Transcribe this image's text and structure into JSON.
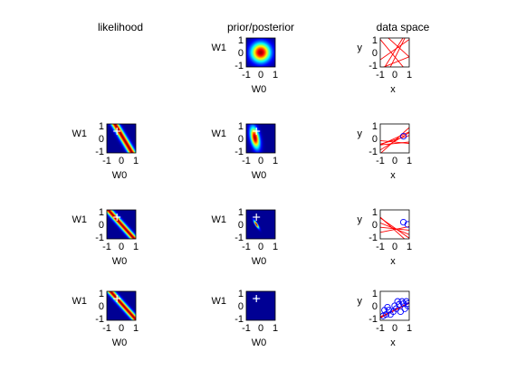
{
  "figure": {
    "background": "#ffffff",
    "column_titles": [
      "likelihood",
      "prior/posterior",
      "data space"
    ],
    "param_axis": {
      "xlabel": "W0",
      "ylabel": "W1",
      "xticks": [
        "-1",
        "0",
        "1"
      ],
      "yticks": [
        "1",
        "0",
        "-1"
      ]
    },
    "data_axis": {
      "xlabel": "x",
      "ylabel": "y",
      "xticks": [
        "-1",
        "0",
        "1"
      ],
      "yticks": [
        "1",
        "0",
        "-1"
      ]
    }
  },
  "chart_data": [
    {
      "type": "heatmap",
      "panel": "prior",
      "row": 0,
      "col": 1,
      "colormap": "jet",
      "xlim": [
        -1,
        1
      ],
      "ylim": [
        -1,
        1
      ],
      "xlabel": "W0",
      "ylabel": "W1",
      "gaussian": {
        "mean": [
          0,
          0
        ],
        "sd": [
          0.45,
          0.45
        ],
        "rho": 0
      }
    },
    {
      "type": "line",
      "panel": "samples",
      "row": 0,
      "col": 2,
      "xlim": [
        -1,
        1
      ],
      "ylim": [
        -1,
        1
      ],
      "xlabel": "x",
      "ylabel": "y",
      "line_color": "#ff0000",
      "lines": [
        {
          "w0": 0.1,
          "w1": 1.6
        },
        {
          "w0": -0.3,
          "w1": -1.2
        },
        {
          "w0": 0.6,
          "w1": -0.9
        },
        {
          "w0": -0.7,
          "w1": 0.4
        },
        {
          "w0": 0.2,
          "w1": 0.7
        },
        {
          "w0": -0.4,
          "w1": 2.0
        }
      ],
      "points": []
    },
    {
      "type": "heatmap",
      "panel": "likelihood",
      "row": 1,
      "col": 0,
      "colormap": "jet",
      "xlim": [
        -1,
        1
      ],
      "ylim": [
        -1,
        1
      ],
      "xlabel": "W0",
      "ylabel": "W1",
      "ridge": {
        "x": 0.6,
        "t": 0.15,
        "width": 0.18
      },
      "true_w": [
        -0.3,
        0.5
      ]
    },
    {
      "type": "heatmap",
      "panel": "posterior",
      "row": 1,
      "col": 1,
      "colormap": "jet",
      "xlim": [
        -1,
        1
      ],
      "ylim": [
        -1,
        1
      ],
      "xlabel": "W0",
      "ylabel": "W1",
      "gaussian": {
        "mean": [
          -0.4,
          0.05
        ],
        "sd": [
          0.22,
          0.5
        ],
        "rho": -0.4
      },
      "true_w": [
        -0.3,
        0.5
      ]
    },
    {
      "type": "line",
      "panel": "samples",
      "row": 1,
      "col": 2,
      "xlim": [
        -1,
        1
      ],
      "ylim": [
        -1,
        1
      ],
      "xlabel": "x",
      "ylabel": "y",
      "line_color": "#ff0000",
      "lines": [
        {
          "w0": -0.1,
          "w1": 0.3
        },
        {
          "w0": -0.2,
          "w1": 0.6
        },
        {
          "w0": -0.35,
          "w1": 0.1
        },
        {
          "w0": 0.0,
          "w1": 0.45
        },
        {
          "w0": -0.25,
          "w1": -0.1
        },
        {
          "w0": -0.15,
          "w1": 0.9
        }
      ],
      "points": [
        [
          0.6,
          0.15
        ]
      ]
    },
    {
      "type": "heatmap",
      "panel": "likelihood",
      "row": 2,
      "col": 0,
      "colormap": "jet",
      "xlim": [
        -1,
        1
      ],
      "ylim": [
        -1,
        1
      ],
      "xlabel": "W0",
      "ylabel": "W1",
      "ridge": {
        "x": 0.9,
        "t": 0.0,
        "width": 0.18
      },
      "true_w": [
        -0.3,
        0.5
      ]
    },
    {
      "type": "heatmap",
      "panel": "posterior",
      "row": 2,
      "col": 1,
      "colormap": "jet",
      "xlim": [
        -1,
        1
      ],
      "ylim": [
        -1,
        1
      ],
      "xlabel": "W0",
      "ylabel": "W1",
      "gaussian": {
        "mean": [
          -0.3,
          0.0
        ],
        "sd": [
          0.12,
          0.18
        ],
        "rho": -0.85
      },
      "true_w": [
        -0.3,
        0.5
      ]
    },
    {
      "type": "line",
      "panel": "samples",
      "row": 2,
      "col": 2,
      "xlim": [
        -1,
        1
      ],
      "ylim": [
        -1,
        1
      ],
      "xlabel": "x",
      "ylabel": "y",
      "line_color": "#ff0000",
      "lines": [
        {
          "w0": -0.3,
          "w1": -0.4
        },
        {
          "w0": -0.35,
          "w1": 0.2
        },
        {
          "w0": -0.25,
          "w1": -0.7
        },
        {
          "w0": -0.3,
          "w1": -0.1
        },
        {
          "w0": -0.4,
          "w1": -0.9
        }
      ],
      "points": [
        [
          0.6,
          0.15
        ],
        [
          0.9,
          0.0
        ]
      ]
    },
    {
      "type": "heatmap",
      "panel": "likelihood",
      "row": 3,
      "col": 0,
      "colormap": "jet",
      "xlim": [
        -1,
        1
      ],
      "ylim": [
        -1,
        1
      ],
      "xlabel": "W0",
      "ylabel": "W1",
      "ridge": {
        "x": 0.9,
        "t": 0.15,
        "width": 0.18
      },
      "true_w": [
        -0.3,
        0.5
      ]
    },
    {
      "type": "heatmap",
      "panel": "posterior",
      "row": 3,
      "col": 1,
      "colormap": "jet",
      "xlim": [
        -1,
        1
      ],
      "ylim": [
        -1,
        1
      ],
      "xlabel": "W0",
      "ylabel": "W1",
      "gaussian": {
        "mean": [
          -0.3,
          0.5
        ],
        "sd": [
          0.04,
          0.05
        ],
        "rho": -0.5
      },
      "true_w": [
        -0.3,
        0.5
      ]
    },
    {
      "type": "line",
      "panel": "samples",
      "row": 3,
      "col": 2,
      "xlim": [
        -1,
        1
      ],
      "ylim": [
        -1,
        1
      ],
      "xlabel": "x",
      "ylabel": "y",
      "line_color": "#ff0000",
      "lines": [
        {
          "w0": -0.3,
          "w1": 0.5
        },
        {
          "w0": -0.28,
          "w1": 0.48
        },
        {
          "w0": -0.32,
          "w1": 0.52
        },
        {
          "w0": -0.3,
          "w1": 0.46
        },
        {
          "w0": -0.29,
          "w1": 0.54
        }
      ],
      "points": [
        [
          0.6,
          0.15
        ],
        [
          0.9,
          0.0
        ],
        [
          0.9,
          0.15
        ],
        [
          -0.6,
          -0.6
        ],
        [
          -0.4,
          -0.3
        ],
        [
          0.1,
          -0.2
        ],
        [
          0.3,
          0.1
        ],
        [
          -0.8,
          -0.7
        ],
        [
          -0.1,
          -0.4
        ],
        [
          0.5,
          0.3
        ],
        [
          0.7,
          -0.2
        ],
        [
          -0.5,
          -0.1
        ],
        [
          0.2,
          0.3
        ],
        [
          -0.3,
          -0.6
        ],
        [
          0.4,
          -0.4
        ],
        [
          0.8,
          0.3
        ],
        [
          -0.7,
          -0.3
        ],
        [
          0.0,
          0.0
        ]
      ]
    }
  ]
}
